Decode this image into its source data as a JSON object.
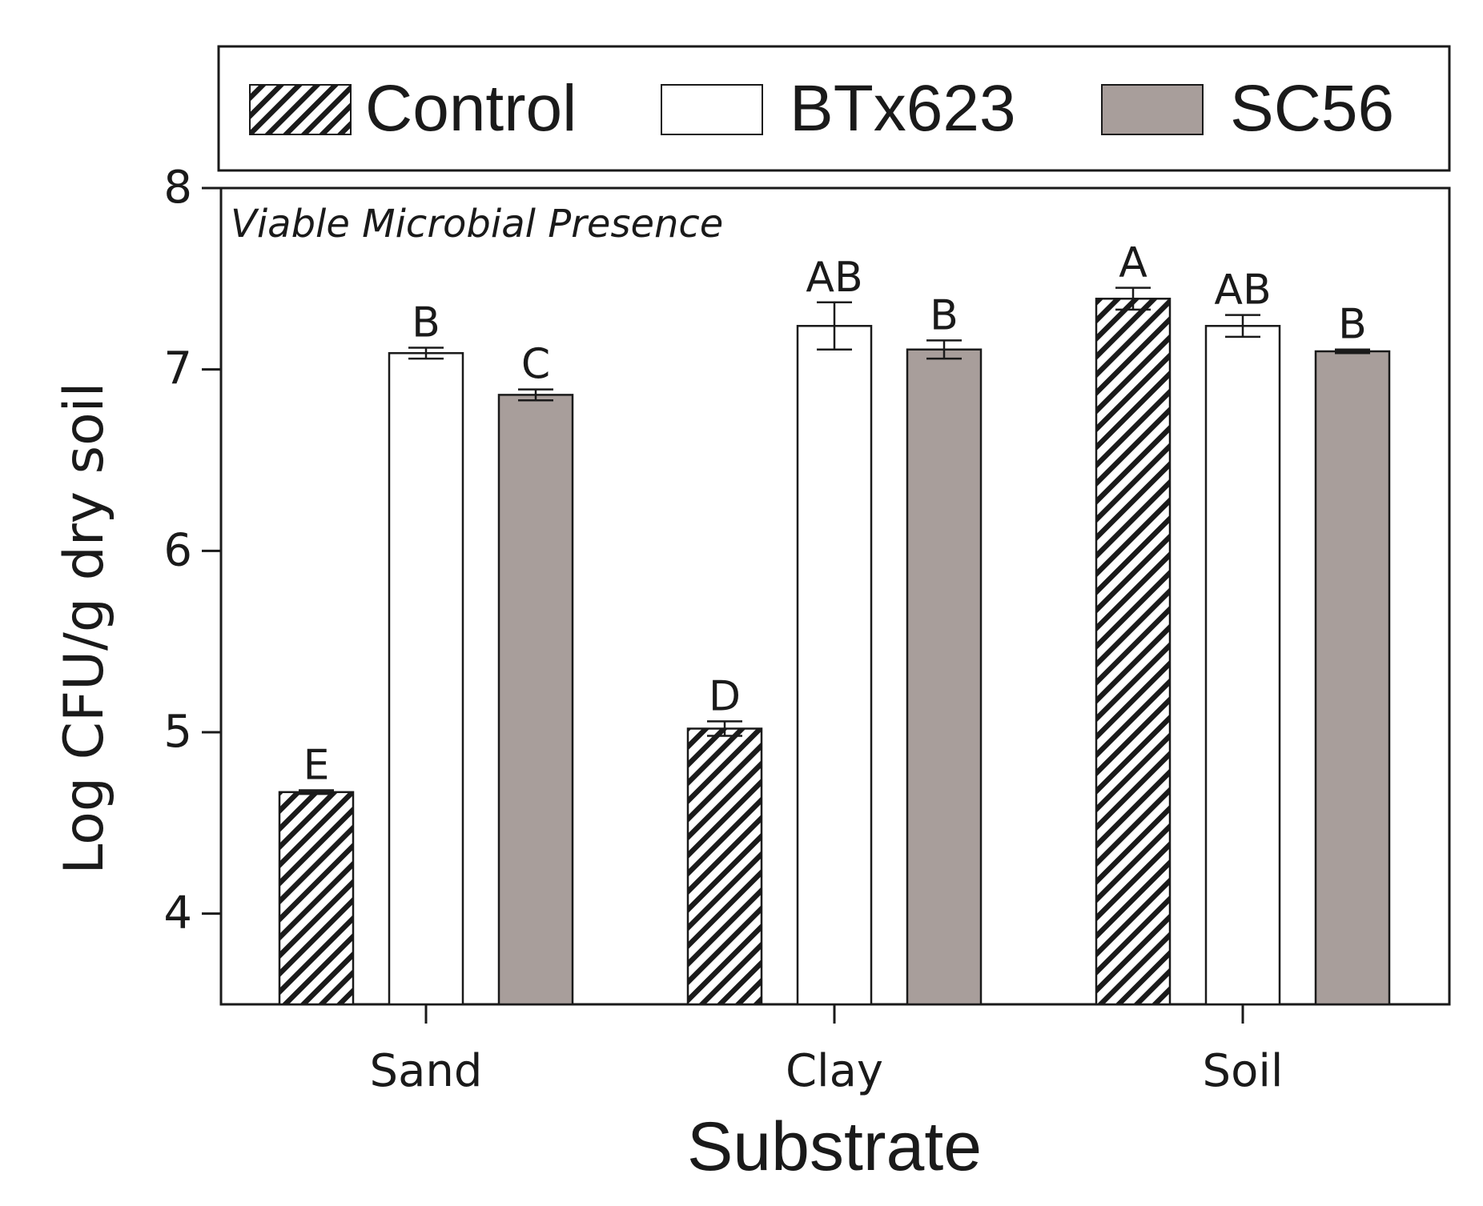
{
  "chart_data": {
    "type": "bar",
    "panel_label": "Viable Microbial Presence",
    "xlabel": "Substrate",
    "ylabel": "Log CFU/g dry soil",
    "ylim": [
      3.5,
      8
    ],
    "yticks": [
      4,
      5,
      6,
      7,
      8
    ],
    "grid": false,
    "legend_position": "top",
    "categories": [
      "Sand",
      "Clay",
      "Soil"
    ],
    "series": [
      {
        "name": "Control",
        "fill": "hatch",
        "values": [
          4.67,
          5.02,
          7.39
        ],
        "errors": [
          0.01,
          0.04,
          0.06
        ],
        "letters": [
          "E",
          "D",
          "A"
        ]
      },
      {
        "name": "BTx623",
        "fill": "#ffffff",
        "values": [
          7.09,
          7.24,
          7.24
        ],
        "errors": [
          0.03,
          0.13,
          0.06
        ],
        "letters": [
          "B",
          "AB",
          "AB"
        ]
      },
      {
        "name": "SC56",
        "fill": "#a89e9b",
        "values": [
          6.86,
          7.11,
          7.1
        ],
        "errors": [
          0.03,
          0.05,
          0.01
        ],
        "letters": [
          "C",
          "B",
          "B"
        ]
      }
    ]
  },
  "colors": {
    "stroke": "#1a1a1a",
    "sc56_fill": "#a89e9b",
    "btx_fill": "#ffffff"
  }
}
